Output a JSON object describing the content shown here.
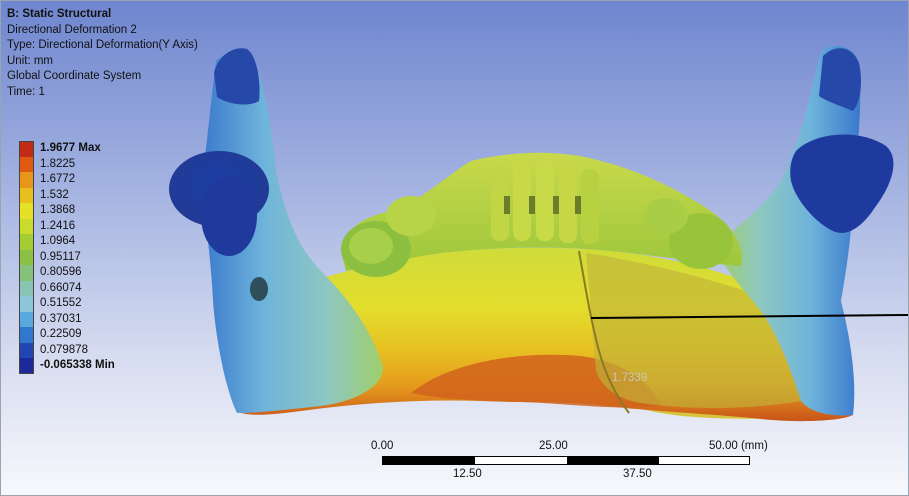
{
  "info": {
    "title": "B: Static Structural",
    "result_name": "Directional Deformation 2",
    "type": "Type: Directional Deformation(Y Axis)",
    "unit": "Unit: mm",
    "coordinate_system": "Global Coordinate System",
    "time": "Time: 1"
  },
  "legend": {
    "entries": [
      {
        "label": "1.9677 Max",
        "color": "#c22b13"
      },
      {
        "label": "1.8225",
        "color": "#de5a12"
      },
      {
        "label": "1.6772",
        "color": "#e9951a"
      },
      {
        "label": "1.532",
        "color": "#e9bf1f"
      },
      {
        "label": "1.3868",
        "color": "#e6e127"
      },
      {
        "label": "1.2416",
        "color": "#cadc2b"
      },
      {
        "label": "1.0964",
        "color": "#a6cc33"
      },
      {
        "label": "0.95117",
        "color": "#8cc045"
      },
      {
        "label": "0.80596",
        "color": "#86c17b"
      },
      {
        "label": "0.66074",
        "color": "#8ac4b4"
      },
      {
        "label": "0.51552",
        "color": "#8ec7db"
      },
      {
        "label": "0.37031",
        "color": "#5aa9de"
      },
      {
        "label": "0.22509",
        "color": "#2f78cd"
      },
      {
        "label": "0.079878",
        "color": "#2146b1"
      },
      {
        "label": "-0.065338 Min",
        "color": "#1b2a98"
      }
    ]
  },
  "probe": {
    "value": "1.7339"
  },
  "scale": {
    "top_labels": [
      "0.00",
      "25.00",
      "50.00 (mm)"
    ],
    "bottom_labels": [
      "12.50",
      "37.50"
    ]
  }
}
